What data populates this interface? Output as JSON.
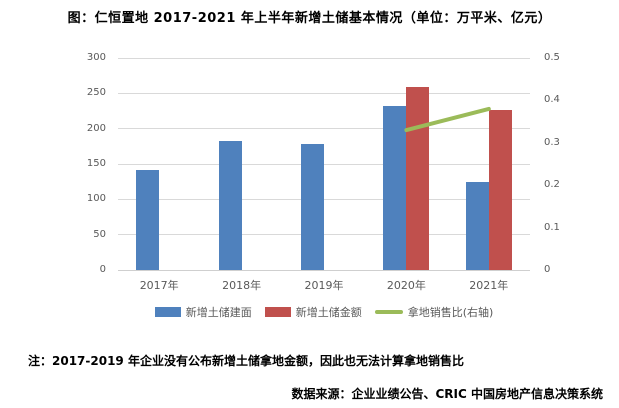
{
  "title": "图：仁恒置地 2017-2021 年上半年新增土储基本情况（单位：万平米、亿元）",
  "note": "注：2017-2019 年企业没有公布新增土储拿地金额，因此也无法计算拿地销售比",
  "source": "数据来源：企业业绩公告、CRIC 中国房地产信息决策系统",
  "colors": {
    "bar_area": "#4f81bd",
    "bar_amount": "#c0504d",
    "line_ratio": "#9bbb59",
    "gridline": "#d9d9d9",
    "axis_text": "#595959"
  },
  "chart_data": {
    "type": "bar",
    "subtype": "grouped-bar-with-line",
    "categories": [
      "2017年",
      "2018年",
      "2019年",
      "2020年",
      "2021年"
    ],
    "series": [
      {
        "name": "新增土储建面",
        "type": "bar",
        "axis": "left",
        "color": "#4f81bd",
        "values": [
          142,
          183,
          178,
          232,
          124
        ]
      },
      {
        "name": "新增土储金额",
        "type": "bar",
        "axis": "left",
        "color": "#c0504d",
        "values": [
          null,
          null,
          null,
          259,
          226
        ]
      },
      {
        "name": "拿地销售比(右轴)",
        "type": "line",
        "axis": "right",
        "color": "#9bbb59",
        "values": [
          null,
          null,
          null,
          0.33,
          0.38
        ]
      }
    ],
    "left_axis": {
      "min": 0,
      "max": 300,
      "step": 50,
      "ticks": [
        "0",
        "50",
        "100",
        "150",
        "200",
        "250",
        "300"
      ]
    },
    "right_axis": {
      "min": 0,
      "max": 0.5,
      "step": 0.1,
      "ticks": [
        "0",
        "0.1",
        "0.2",
        "0.3",
        "0.4",
        "0.5"
      ]
    },
    "grid": true,
    "legend_position": "bottom"
  }
}
